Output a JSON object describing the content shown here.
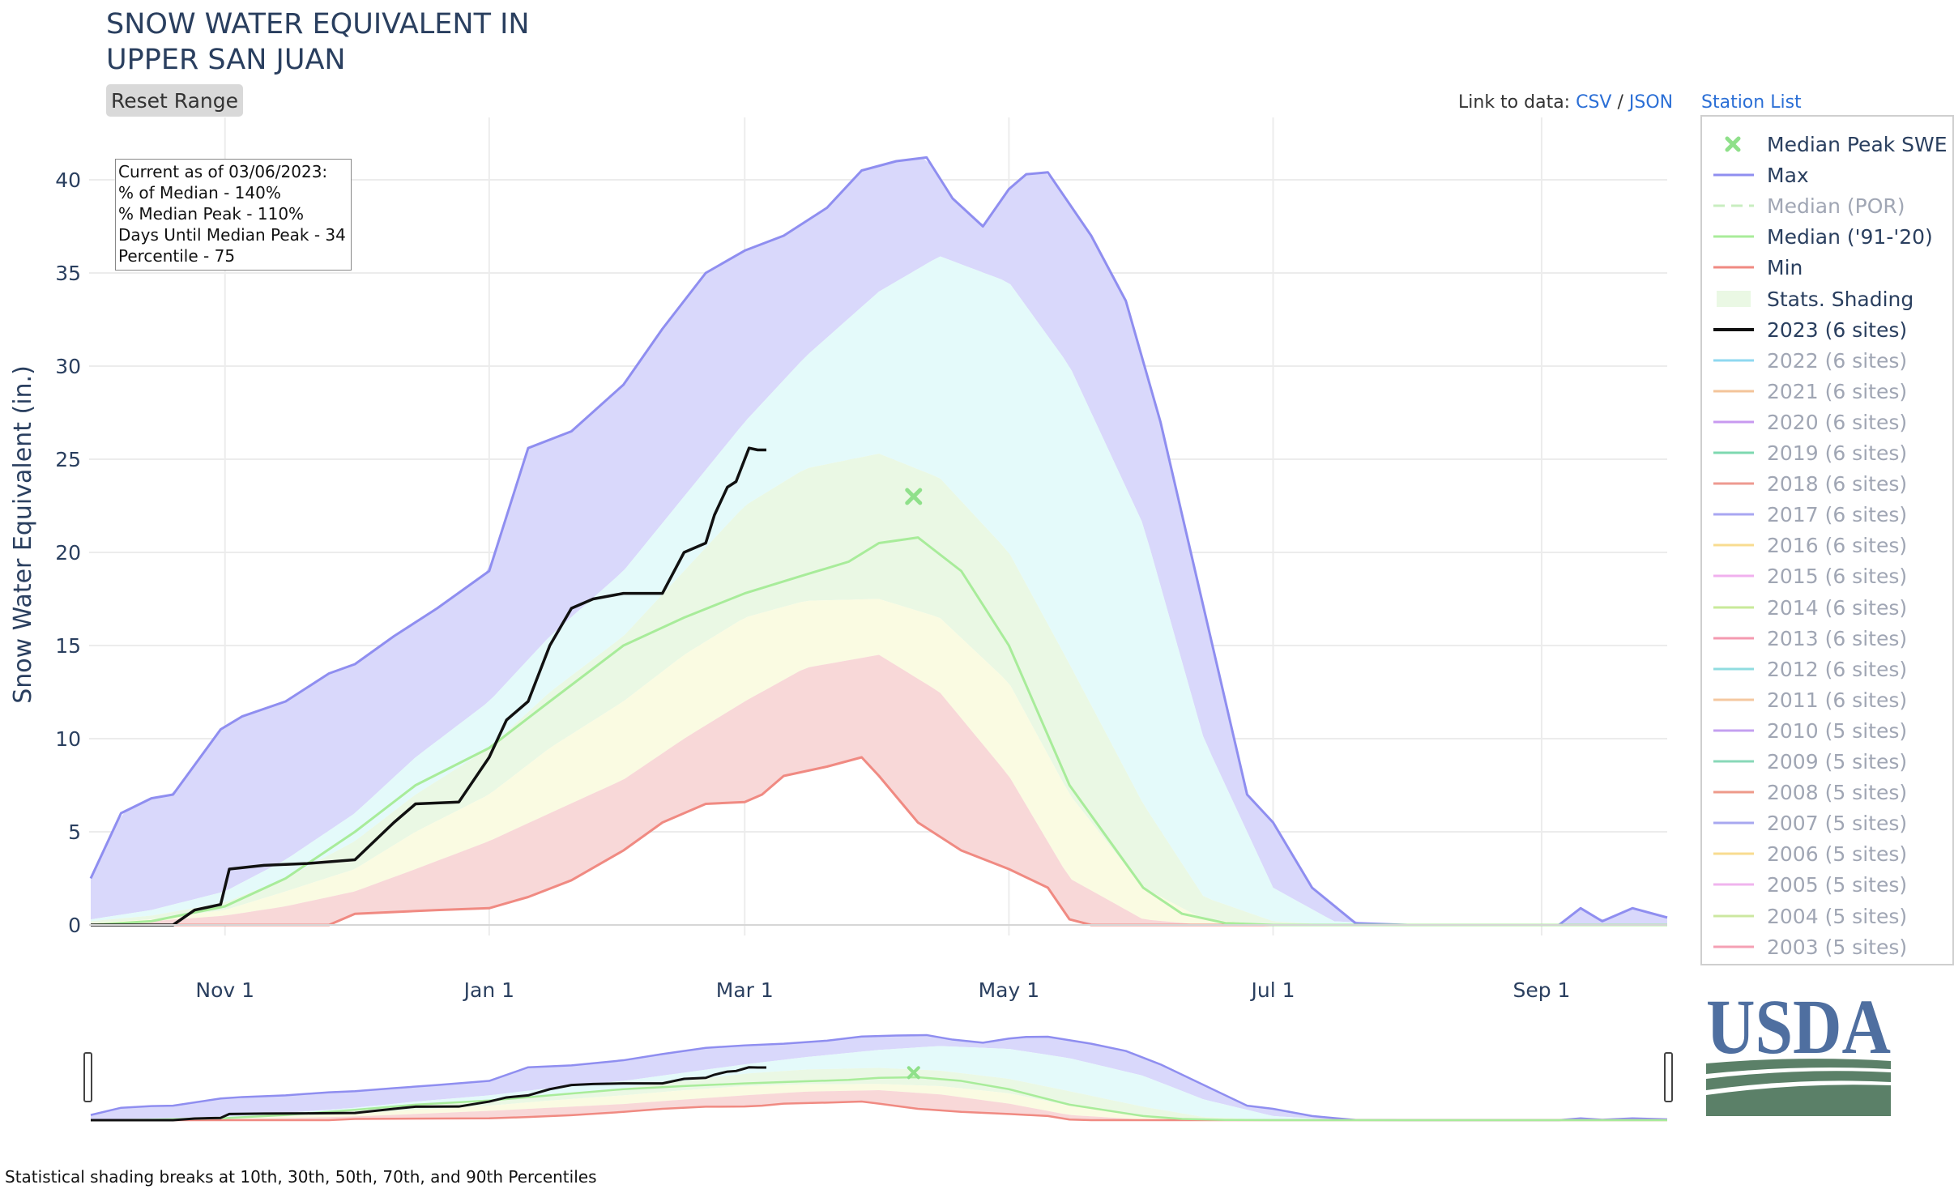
{
  "title_lines": [
    "SNOW WATER EQUIVALENT IN",
    "UPPER SAN JUAN"
  ],
  "reset_button": "Reset Range",
  "links": {
    "prefix": "Link to data:",
    "csv": "CSV",
    "sep": "/",
    "json": "JSON",
    "station_list": "Station List"
  },
  "info_box": [
    "Current as of 03/06/2023:",
    "% of Median - 140%",
    "% Median Peak - 110%",
    "Days Until Median Peak - 34",
    "Percentile - 75"
  ],
  "footnote": "Statistical shading breaks at 10th, 30th, 50th, 70th, and 90th Percentiles",
  "logo_text": "USDA",
  "colors": {
    "max": "#8f8ef0",
    "median_9120": "#a8ec9a",
    "min": "#f08a82",
    "current": "#111111",
    "shade_upper": "#d9d8fb",
    "shade_cyan": "#e4fafa",
    "shade_green": "#eaf8e4",
    "shade_yellow": "#fafbe2",
    "shade_red": "#f8d8d8",
    "median_peak": "#8fe08a",
    "usda_blue": "#4f6fa0",
    "usda_green": "#5b8068"
  },
  "legend": [
    {
      "label": "Median Peak SWE",
      "color": "#8fe08a",
      "kind": "marker",
      "active": true
    },
    {
      "label": "Max",
      "color": "#8f8ef0",
      "kind": "line",
      "active": true
    },
    {
      "label": "Median (POR)",
      "color": "#c8eec0",
      "kind": "dash",
      "active": false
    },
    {
      "label": "Median ('91-'20)",
      "color": "#a8ec9a",
      "kind": "line",
      "active": true
    },
    {
      "label": "Min",
      "color": "#f08a82",
      "kind": "line",
      "active": true
    },
    {
      "label": "Stats. Shading",
      "color": "#eaf8e4",
      "kind": "fill",
      "active": true
    },
    {
      "label": "2023 (6 sites)",
      "color": "#111111",
      "kind": "line",
      "active": true
    },
    {
      "label": "2022 (6 sites)",
      "color": "#8fd8f0",
      "kind": "line",
      "active": false
    },
    {
      "label": "2021 (6 sites)",
      "color": "#f3c49a",
      "kind": "line",
      "active": false
    },
    {
      "label": "2020 (6 sites)",
      "color": "#c89af0",
      "kind": "line",
      "active": false
    },
    {
      "label": "2019 (6 sites)",
      "color": "#7ed8b0",
      "kind": "line",
      "active": false
    },
    {
      "label": "2018 (6 sites)",
      "color": "#ee9a90",
      "kind": "line",
      "active": false
    },
    {
      "label": "2017 (6 sites)",
      "color": "#a8a6f2",
      "kind": "line",
      "active": false
    },
    {
      "label": "2016 (6 sites)",
      "color": "#f8dc90",
      "kind": "line",
      "active": false
    },
    {
      "label": "2015 (6 sites)",
      "color": "#f0b0ee",
      "kind": "line",
      "active": false
    },
    {
      "label": "2014 (6 sites)",
      "color": "#c8ea9a",
      "kind": "line",
      "active": false
    },
    {
      "label": "2013 (6 sites)",
      "color": "#f49ab0",
      "kind": "line",
      "active": false
    },
    {
      "label": "2012 (6 sites)",
      "color": "#90dce0",
      "kind": "line",
      "active": false
    },
    {
      "label": "2011 (6 sites)",
      "color": "#f4c8a0",
      "kind": "line",
      "active": false
    },
    {
      "label": "2010 (5 sites)",
      "color": "#c4a0f0",
      "kind": "line",
      "active": false
    },
    {
      "label": "2009 (5 sites)",
      "color": "#88d8b8",
      "kind": "line",
      "active": false
    },
    {
      "label": "2008 (5 sites)",
      "color": "#ee9a8a",
      "kind": "line",
      "active": false
    },
    {
      "label": "2007 (5 sites)",
      "color": "#a8a8f0",
      "kind": "line",
      "active": false
    },
    {
      "label": "2006 (5 sites)",
      "color": "#f8dc90",
      "kind": "line",
      "active": false
    },
    {
      "label": "2005 (5 sites)",
      "color": "#f0b4ee",
      "kind": "line",
      "active": false
    },
    {
      "label": "2004 (5 sites)",
      "color": "#cce8a0",
      "kind": "line",
      "active": false
    },
    {
      "label": "2003 (5 sites)",
      "color": "#f4a0b4",
      "kind": "line",
      "active": false
    }
  ],
  "chart_data": {
    "type": "area",
    "title": "SNOW WATER EQUIVALENT IN UPPER SAN JUAN",
    "xlabel": "",
    "ylabel": "Snow Water Equivalent (in.)",
    "x_ticks": [
      "Nov 1",
      "Jan 1",
      "Mar 1",
      "May 1",
      "Jul 1",
      "Sep 1"
    ],
    "x_tick_dates": [
      "2022-11-01",
      "2023-01-01",
      "2023-03-01",
      "2023-05-01",
      "2023-07-01",
      "2023-09-01"
    ],
    "x_range": [
      "2022-10-01",
      "2023-09-30"
    ],
    "y_ticks": [
      0,
      5,
      10,
      15,
      20,
      25,
      30,
      35,
      40
    ],
    "ylim": [
      -1.5,
      43
    ],
    "grid": true,
    "legend_position": "right",
    "shading_breaks_percentiles": [
      10,
      30,
      50,
      70,
      90
    ],
    "bands": {
      "x": [
        "2022-10-01",
        "2022-10-15",
        "2022-11-01",
        "2022-11-15",
        "2022-12-01",
        "2022-12-15",
        "2023-01-01",
        "2023-01-15",
        "2023-02-01",
        "2023-02-15",
        "2023-03-01",
        "2023-03-15",
        "2023-04-01",
        "2023-04-15",
        "2023-05-01",
        "2023-05-15",
        "2023-06-01",
        "2023-06-15",
        "2023-07-01",
        "2023-07-15",
        "2023-08-01"
      ],
      "p90": [
        0.3,
        0.8,
        1.8,
        3.5,
        6.0,
        9.0,
        12.0,
        15.5,
        19.0,
        23.0,
        27.0,
        30.5,
        34.0,
        35.9,
        34.5,
        30.0,
        21.5,
        10.0,
        2.0,
        0.2,
        0
      ],
      "p70": [
        0.2,
        0.5,
        1.2,
        2.5,
        4.5,
        7.0,
        9.5,
        12.5,
        15.5,
        19.0,
        22.5,
        24.5,
        25.3,
        24.0,
        20.0,
        14.0,
        6.5,
        1.5,
        0.2,
        0,
        0
      ],
      "p50": [
        0.1,
        0.3,
        0.8,
        1.8,
        3.0,
        5.0,
        7.0,
        9.5,
        12.0,
        14.5,
        16.5,
        17.4,
        17.5,
        16.5,
        13.0,
        7.0,
        2.0,
        0.3,
        0,
        0,
        0
      ],
      "p30": [
        0.05,
        0.2,
        0.5,
        1.0,
        1.8,
        3.0,
        4.5,
        6.0,
        7.8,
        10.0,
        12.0,
        13.8,
        14.5,
        12.5,
        8.0,
        2.5,
        0.3,
        0,
        0,
        0,
        0
      ],
      "p10": [
        0,
        0,
        0.2,
        0.4,
        0.7,
        1.0,
        1.6,
        2.5,
        3.8,
        5.5,
        6.6,
        8.5,
        8.8,
        7.5,
        3.0,
        0.5,
        0,
        0,
        0,
        0,
        0
      ]
    },
    "series": [
      {
        "name": "Max",
        "x": [
          "2022-10-01",
          "2022-10-08",
          "2022-10-15",
          "2022-10-20",
          "2022-10-31",
          "2022-11-05",
          "2022-11-15",
          "2022-11-25",
          "2022-12-01",
          "2022-12-10",
          "2022-12-20",
          "2023-01-01",
          "2023-01-10",
          "2023-01-20",
          "2023-02-01",
          "2023-02-10",
          "2023-02-20",
          "2023-03-01",
          "2023-03-10",
          "2023-03-20",
          "2023-03-28",
          "2023-04-05",
          "2023-04-12",
          "2023-04-18",
          "2023-04-25",
          "2023-05-01",
          "2023-05-05",
          "2023-05-10",
          "2023-05-20",
          "2023-05-28",
          "2023-06-05",
          "2023-06-15",
          "2023-06-25",
          "2023-07-01",
          "2023-07-10",
          "2023-07-20",
          "2023-08-01",
          "2023-08-15",
          "2023-08-31",
          "2023-09-05",
          "2023-09-10",
          "2023-09-15",
          "2023-09-22",
          "2023-09-30"
        ],
        "y": [
          2.5,
          6.0,
          6.8,
          7.0,
          10.5,
          11.2,
          12.0,
          13.5,
          14.0,
          15.5,
          17.0,
          19.0,
          25.6,
          26.5,
          29.0,
          32.0,
          35.0,
          36.2,
          37.0,
          38.5,
          40.5,
          41.0,
          41.2,
          39.0,
          37.5,
          39.5,
          40.3,
          40.4,
          37.0,
          33.5,
          27.0,
          17.0,
          7.0,
          5.5,
          2.0,
          0.1,
          0.0,
          0.0,
          0.0,
          0.0,
          0.9,
          0.2,
          0.9,
          0.4
        ]
      },
      {
        "name": "Median ('91-'20)",
        "x": [
          "2022-10-01",
          "2022-10-15",
          "2022-11-01",
          "2022-11-15",
          "2022-12-01",
          "2022-12-15",
          "2023-01-01",
          "2023-01-15",
          "2023-02-01",
          "2023-02-15",
          "2023-03-01",
          "2023-03-15",
          "2023-03-25",
          "2023-04-01",
          "2023-04-10",
          "2023-04-20",
          "2023-05-01",
          "2023-05-15",
          "2023-06-01",
          "2023-06-10",
          "2023-06-20",
          "2023-07-01",
          "2023-07-15",
          "2023-09-30"
        ],
        "y": [
          0.0,
          0.2,
          1.0,
          2.5,
          5.0,
          7.5,
          9.5,
          12.0,
          15.0,
          16.5,
          17.8,
          18.8,
          19.5,
          20.5,
          20.8,
          19.0,
          15.0,
          7.5,
          2.0,
          0.6,
          0.1,
          0.0,
          0.0,
          0.0
        ]
      },
      {
        "name": "Min",
        "x": [
          "2022-10-01",
          "2022-11-01",
          "2022-11-25",
          "2022-12-01",
          "2022-12-20",
          "2023-01-01",
          "2023-01-10",
          "2023-01-20",
          "2023-02-01",
          "2023-02-10",
          "2023-02-20",
          "2023-03-01",
          "2023-03-05",
          "2023-03-10",
          "2023-03-20",
          "2023-03-28",
          "2023-04-01",
          "2023-04-10",
          "2023-04-20",
          "2023-05-01",
          "2023-05-10",
          "2023-05-15",
          "2023-05-20",
          "2023-06-01",
          "2023-09-30"
        ],
        "y": [
          0.0,
          0.0,
          0.0,
          0.6,
          0.8,
          0.9,
          1.5,
          2.4,
          4.0,
          5.5,
          6.5,
          6.6,
          7.0,
          8.0,
          8.5,
          9.0,
          8.0,
          5.5,
          4.0,
          3.0,
          2.0,
          0.3,
          0.0,
          0.0,
          0.0
        ]
      },
      {
        "name": "2023 (6 sites)",
        "x": [
          "2022-10-01",
          "2022-10-20",
          "2022-10-25",
          "2022-10-31",
          "2022-11-02",
          "2022-11-10",
          "2022-11-20",
          "2022-12-01",
          "2022-12-10",
          "2022-12-15",
          "2022-12-25",
          "2023-01-01",
          "2023-01-05",
          "2023-01-10",
          "2023-01-15",
          "2023-01-20",
          "2023-01-25",
          "2023-02-01",
          "2023-02-10",
          "2023-02-15",
          "2023-02-20",
          "2023-02-22",
          "2023-02-25",
          "2023-02-27",
          "2023-03-01",
          "2023-03-02",
          "2023-03-04",
          "2023-03-06"
        ],
        "y": [
          0.0,
          0.0,
          0.8,
          1.1,
          3.0,
          3.2,
          3.3,
          3.5,
          5.5,
          6.5,
          6.6,
          9.0,
          11.0,
          12.0,
          15.0,
          17.0,
          17.5,
          17.8,
          17.8,
          20.0,
          20.5,
          22.0,
          23.5,
          23.8,
          25.0,
          25.6,
          25.5,
          25.5
        ]
      },
      {
        "name": "Median Peak SWE",
        "x": [
          "2023-04-09"
        ],
        "y": [
          23.0
        ]
      }
    ]
  }
}
